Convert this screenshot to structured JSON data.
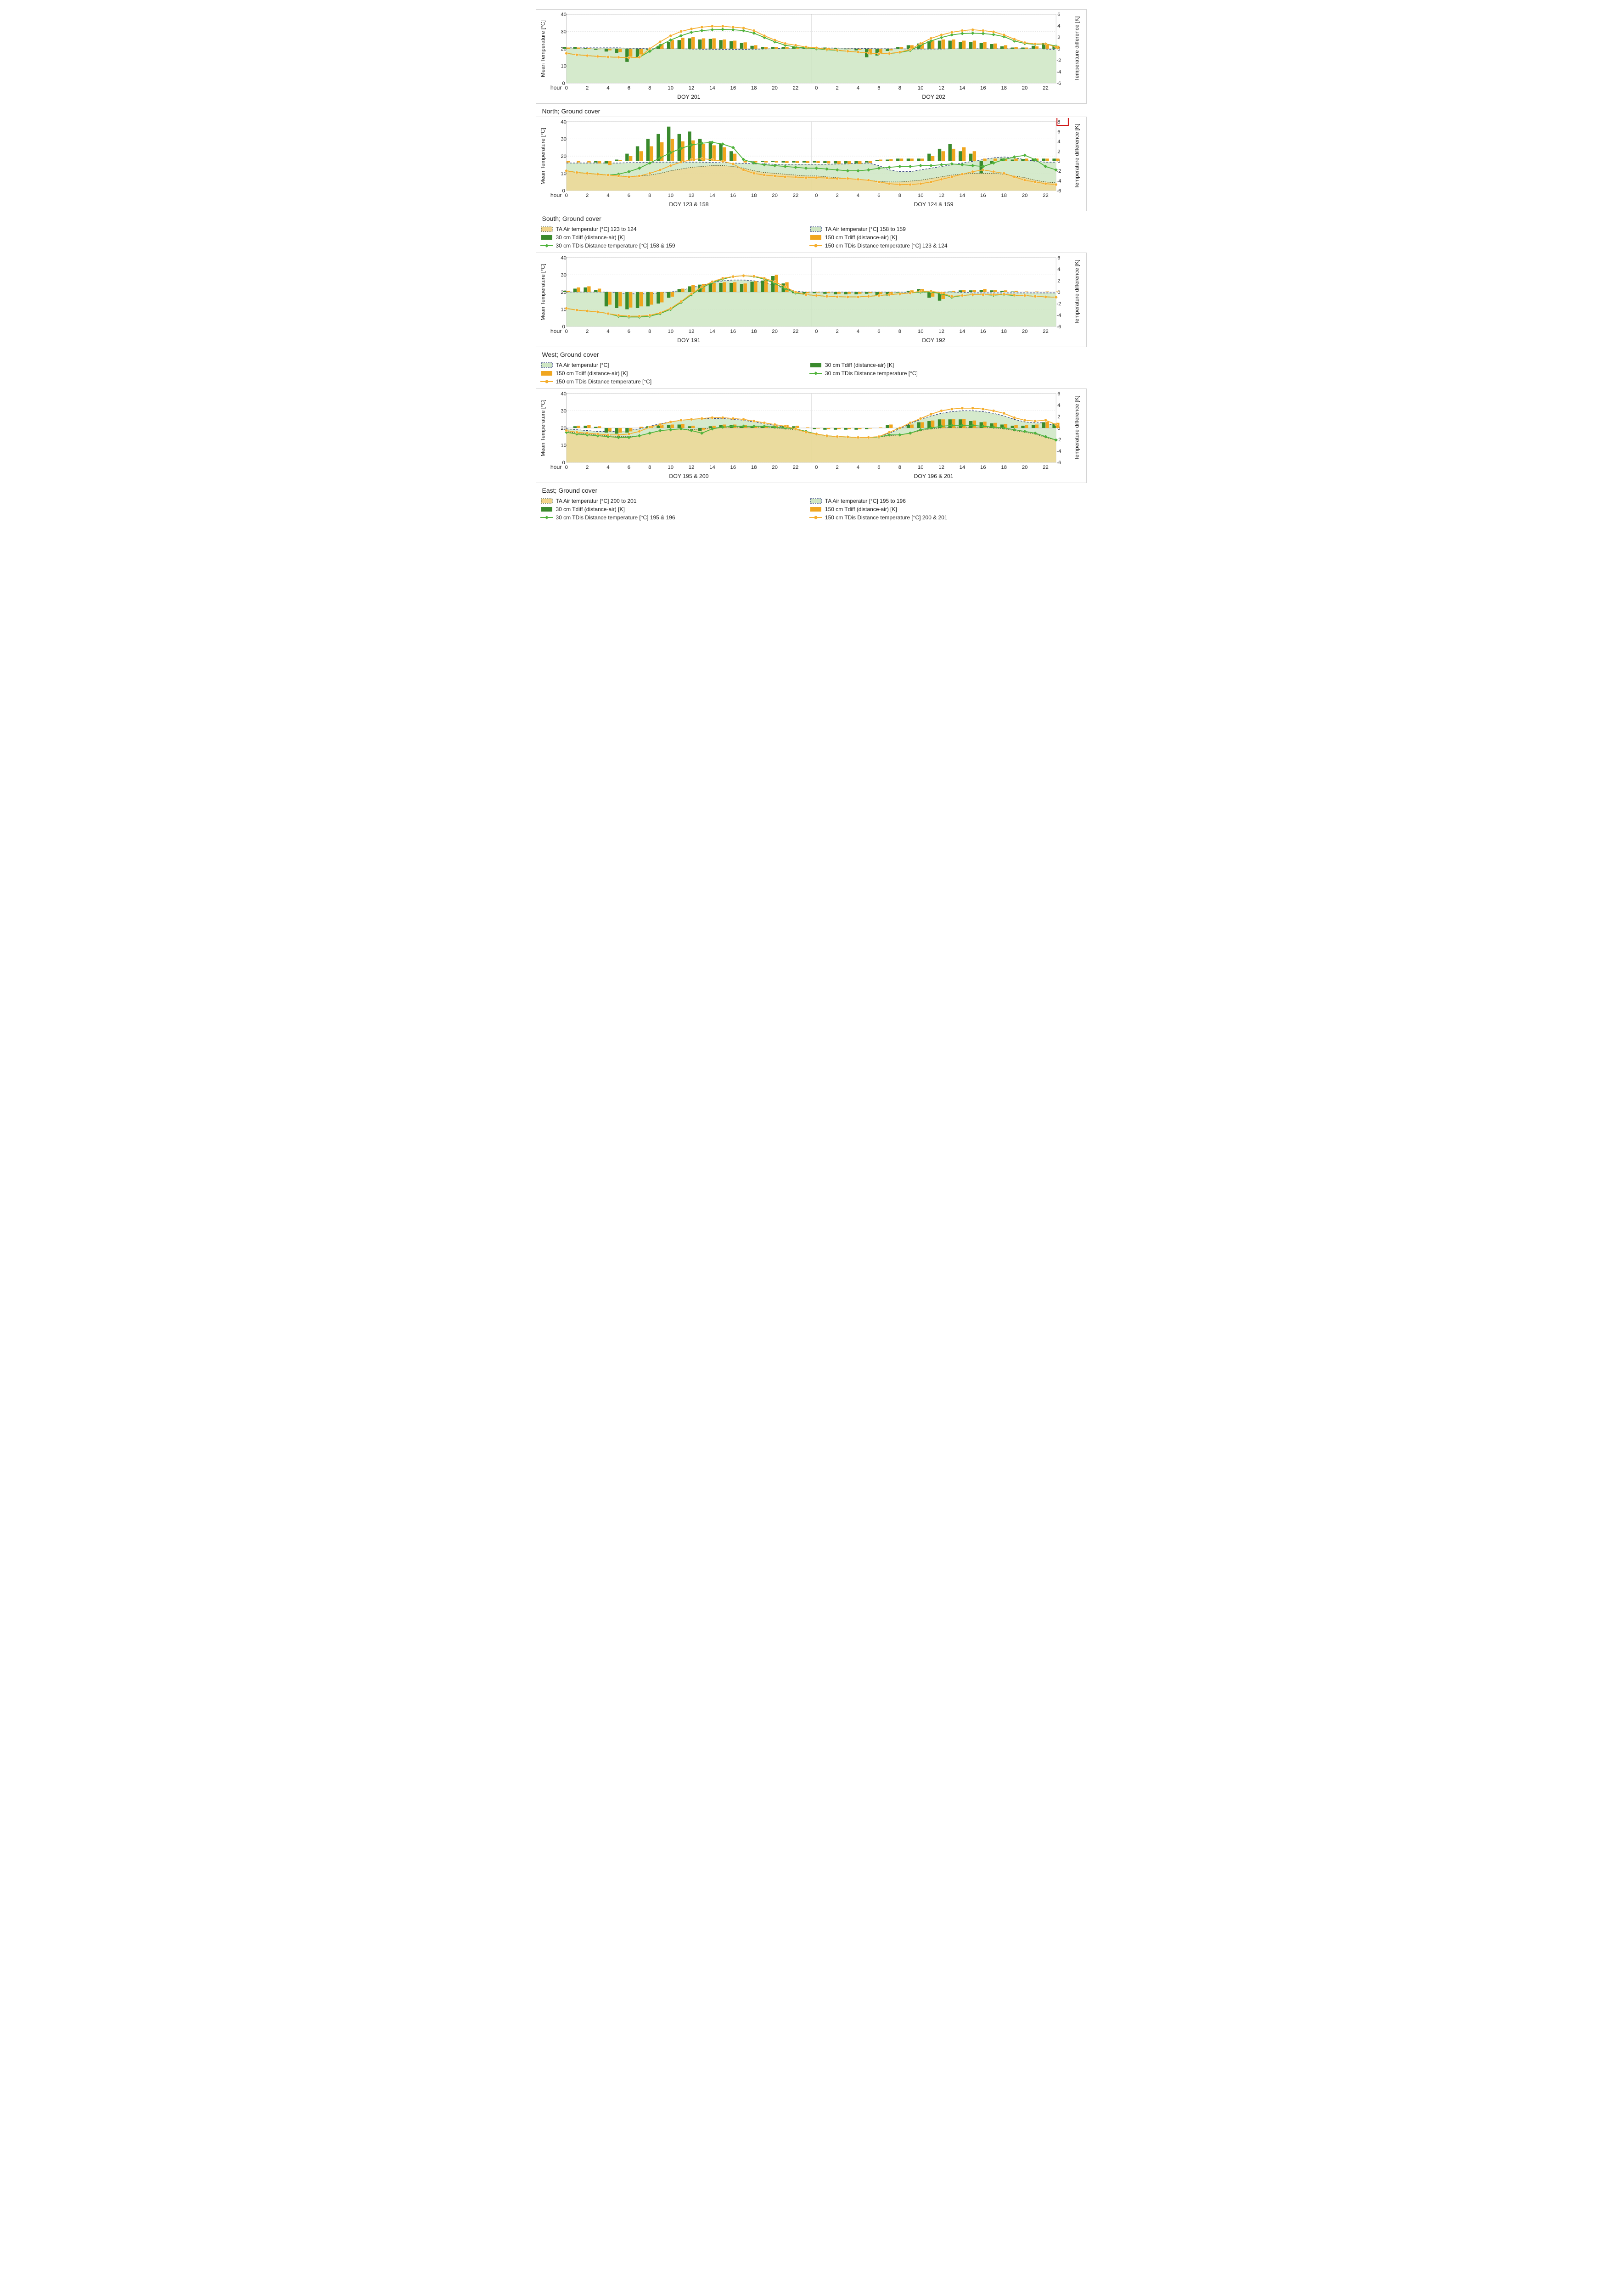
{
  "global": {
    "xAxisLabel": "hour",
    "yLeftLabel": "Mean Temperature [°C]",
    "yRightLabel": "Temperature difference [K]",
    "yLeftTicks": [
      0,
      10,
      20,
      30,
      40
    ],
    "yLeftLim": [
      0,
      40
    ],
    "yRightTicks": [
      -6,
      -4,
      -2,
      0,
      2,
      4,
      6
    ],
    "yRightLim": [
      -6,
      6
    ],
    "hourTicks": [
      0,
      2,
      4,
      6,
      8,
      10,
      12,
      14,
      16,
      18,
      20,
      22
    ],
    "colors": {
      "green": "#3a8a2d",
      "greenFill": "#cee6c3",
      "greenLine": "#50b33c",
      "orange": "#f0a61f",
      "orangeFill": "#f2d48a",
      "orangeLine": "#f5ae2e",
      "dashNavy": "#2b3a78",
      "dashDark": "#4a5428",
      "grid": "#cfcfcf",
      "border": "#a6a6a6",
      "text": "#222222",
      "redBox": "#d01818"
    },
    "fontSize": {
      "tick": 11,
      "axisLabel": 12,
      "title": 14,
      "legend": 12
    }
  },
  "panels": [
    {
      "id": "north",
      "title": "North; Ground cover",
      "subLabels": [
        "DOY 201",
        "DOY 202"
      ],
      "legend": null,
      "barsGreen": [
        0.3,
        0.3,
        0.1,
        -0.2,
        -0.5,
        -0.8,
        -2.3,
        -1.5,
        -0.2,
        0.5,
        1.2,
        1.5,
        1.8,
        1.6,
        1.7,
        1.5,
        1.3,
        1.0,
        0.5,
        0.3,
        0.3,
        0.3,
        0.3,
        0.3,
        0.2,
        0.2,
        0.1,
        -0.1,
        -0.3,
        -1.5,
        -1.2,
        -0.4,
        0.3,
        0.6,
        0.9,
        1.3,
        1.4,
        1.4,
        1.2,
        1.2,
        1.0,
        0.8,
        0.4,
        0.2,
        0.2,
        0.5,
        1.0,
        0.6
      ],
      "barsOrange": [
        0.2,
        0.2,
        0.1,
        -0.1,
        -0.3,
        -0.6,
        -1.4,
        -1.0,
        0.0,
        0.8,
        1.5,
        1.9,
        2.0,
        1.8,
        1.8,
        1.6,
        1.4,
        1.1,
        0.6,
        0.3,
        0.3,
        0.3,
        0.3,
        0.3,
        0.1,
        0.1,
        0.0,
        -0.1,
        -0.2,
        -1.0,
        -0.8,
        -0.3,
        0.3,
        0.6,
        1.0,
        1.4,
        1.6,
        1.6,
        1.4,
        1.4,
        1.2,
        0.9,
        0.6,
        0.3,
        0.2,
        0.4,
        0.8,
        0.5
      ],
      "lineGreen": [
        17.3,
        16.5,
        16.0,
        15.5,
        15.2,
        15.0,
        14.8,
        15.0,
        18.5,
        22.0,
        25.0,
        27.5,
        29.5,
        30.5,
        31.0,
        31.2,
        31.0,
        30.5,
        29.0,
        26.5,
        24.0,
        22.0,
        21.0,
        20.5,
        20.0,
        19.4,
        19.0,
        18.5,
        18.0,
        17.5,
        17.0,
        17.2,
        17.8,
        19.0,
        22.0,
        24.5,
        26.5,
        28.0,
        28.8,
        29.0,
        28.8,
        28.2,
        27.0,
        24.5,
        23.0,
        22.5,
        22.8,
        21.5
      ],
      "lineOrange": [
        17.3,
        16.5,
        16.0,
        15.5,
        15.2,
        15.0,
        14.8,
        15.0,
        20.0,
        24.0,
        27.5,
        30.0,
        31.5,
        32.5,
        33.0,
        33.0,
        32.5,
        32.0,
        30.5,
        27.5,
        25.0,
        23.0,
        22.0,
        21.0,
        20.5,
        19.6,
        19.2,
        18.5,
        18.0,
        17.5,
        17.0,
        17.2,
        18.0,
        19.5,
        23.0,
        26.0,
        28.0,
        29.5,
        30.5,
        31.0,
        30.5,
        29.8,
        28.0,
        25.5,
        23.5,
        22.8,
        22.8,
        21.0
      ],
      "areaDash": [
        20.5,
        20.5,
        20.5,
        20.5,
        20.5,
        20.5,
        20.3,
        20.2,
        20.0,
        20.0,
        19.9,
        19.9,
        19.8,
        19.7,
        19.7,
        19.6,
        19.6,
        19.6,
        19.7,
        19.8,
        20.0,
        20.3,
        20.4,
        20.4,
        20.4,
        20.4,
        20.4,
        20.3,
        20.2,
        20.1,
        20.0,
        20.0,
        19.9,
        19.8,
        19.8,
        19.8,
        19.8,
        19.9,
        19.9,
        20.0,
        20.0,
        20.0,
        20.0,
        20.0,
        20.0,
        20.0,
        19.8,
        19.5
      ],
      "showRedBox": false
    },
    {
      "id": "south",
      "title": "South; Ground cover",
      "subLabels": [
        "DOY 123 & 158",
        "DOY 124 & 159"
      ],
      "yRightTicks": [
        -6,
        -4,
        -2,
        0,
        2,
        4,
        6,
        8
      ],
      "yRightLim": [
        -6,
        8
      ],
      "legend": [
        {
          "type": "areaDashDark",
          "label": "TA Air temperatur [°C] 123 to 124"
        },
        {
          "type": "areaDashGreen",
          "label": "TA Air temperatur [°C] 158 to 159"
        },
        {
          "type": "barGreen",
          "label": "30 cm Tdiff (distance-air) [K]"
        },
        {
          "type": "barOrange",
          "label": "150 cm Tdiff (distance-air) [K]"
        },
        {
          "type": "lineGreen",
          "label": "30 cm TDis Distance temperature [°C] 158 & 159"
        },
        {
          "type": "lineOrange",
          "label": "150 cm TDis Distance temperature [°C] 123 & 124"
        }
      ],
      "barsGreen": [
        0.0,
        0.0,
        0.0,
        -0.3,
        -0.5,
        0.3,
        1.5,
        3.0,
        4.5,
        5.5,
        7.0,
        5.5,
        6.0,
        4.5,
        4.0,
        3.5,
        2.0,
        0.0,
        -0.1,
        -0.2,
        -0.2,
        -0.3,
        -0.3,
        -0.3,
        -0.3,
        -0.4,
        -0.5,
        -0.5,
        -0.5,
        -0.3,
        0.2,
        0.3,
        0.5,
        0.5,
        0.5,
        1.5,
        2.5,
        3.5,
        2.0,
        1.5,
        -2.5,
        -0.5,
        0.5,
        0.3,
        0.4,
        0.4,
        0.5,
        0.5
      ],
      "barsOrange": [
        -0.3,
        -0.3,
        -0.3,
        -0.5,
        -0.8,
        0.2,
        1.0,
        2.0,
        3.0,
        3.8,
        4.5,
        4.0,
        4.2,
        3.5,
        3.2,
        2.8,
        1.5,
        -0.3,
        -0.3,
        -0.3,
        -0.3,
        -0.4,
        -0.4,
        -0.4,
        -0.4,
        -0.5,
        -0.6,
        -0.6,
        -0.6,
        -0.4,
        0.3,
        0.4,
        0.5,
        0.5,
        0.5,
        1.0,
        2.0,
        2.5,
        2.8,
        2.0,
        0.5,
        0.5,
        0.5,
        0.5,
        0.5,
        0.5,
        0.5,
        0.5
      ],
      "lineGreen": [
        11.5,
        10.5,
        10.0,
        9.5,
        9.0,
        9.5,
        11.0,
        13.0,
        16.0,
        19.0,
        22.0,
        24.5,
        26.5,
        27.5,
        28.0,
        27.0,
        25.0,
        18.0,
        16.0,
        15.0,
        14.5,
        14.0,
        13.5,
        13.0,
        13.0,
        12.5,
        12.0,
        11.5,
        11.5,
        12.0,
        13.0,
        13.5,
        14.0,
        14.0,
        14.5,
        14.5,
        15.0,
        15.5,
        15.0,
        14.5,
        14.0,
        16.0,
        18.0,
        19.5,
        20.5,
        18.0,
        14.0,
        12.0
      ],
      "lineOrange": [
        11.5,
        10.5,
        10.0,
        9.5,
        9.0,
        8.5,
        8.0,
        8.5,
        10.0,
        12.0,
        14.5,
        16.5,
        18.0,
        18.5,
        18.0,
        17.0,
        15.5,
        12.0,
        10.0,
        9.0,
        8.5,
        8.0,
        7.8,
        7.5,
        7.5,
        7.3,
        7.0,
        7.0,
        6.5,
        6.0,
        5.0,
        4.0,
        3.5,
        3.5,
        4.0,
        5.0,
        6.5,
        8.0,
        9.5,
        11.0,
        12.0,
        11.0,
        10.0,
        8.0,
        6.0,
        5.0,
        4.0,
        3.5
      ],
      "areaDash": [
        16.0,
        16.0,
        16.0,
        16.0,
        16.0,
        16.0,
        16.2,
        16.3,
        16.4,
        16.5,
        16.5,
        16.5,
        16.5,
        16.5,
        16.3,
        16.2,
        16.0,
        15.8,
        15.5,
        15.5,
        15.3,
        15.3,
        15.3,
        15.3,
        15.3,
        15.3,
        15.4,
        15.5,
        15.8,
        16.0,
        14.5,
        12.0,
        11.0,
        11.0,
        12.0,
        13.0,
        14.0,
        15.0,
        16.0,
        17.0,
        18.0,
        19.0,
        19.5,
        19.0,
        18.0,
        17.0,
        16.5,
        16.5
      ],
      "areaDash2": [
        11.5,
        10.5,
        10.0,
        9.5,
        9.0,
        8.5,
        8.3,
        8.5,
        9.0,
        10.0,
        11.5,
        12.5,
        13.5,
        14.0,
        14.5,
        14.5,
        14.0,
        13.0,
        11.5,
        10.5,
        10.0,
        9.5,
        9.0,
        8.5,
        8.5,
        8.0,
        7.5,
        7.0,
        6.5,
        6.0,
        5.3,
        5.0,
        5.0,
        5.5,
        6.0,
        7.0,
        8.0,
        9.0,
        9.5,
        10.0,
        10.0,
        10.0,
        9.5,
        8.5,
        7.5,
        6.0,
        5.0,
        4.5
      ],
      "showRedBox": true
    },
    {
      "id": "west",
      "title": "West; Ground cover",
      "subLabels": [
        "DOY 191",
        "DOY 192"
      ],
      "legend": [
        {
          "type": "areaDashGreen",
          "label": "TA Air temperatur [°C]"
        },
        {
          "type": "barGreen",
          "label": "30 cm Tdiff (distance-air) [K]"
        },
        {
          "type": "barOrange",
          "label": "150 cm Tdiff (distance-air) [K]"
        },
        {
          "type": "lineGreen",
          "label": "30 cm TDis Distance temperature [°C]"
        },
        {
          "type": "lineOrange",
          "label": "150 cm TDis Distance temperature [°C]"
        }
      ],
      "barsGreen": [
        0.2,
        0.6,
        0.8,
        0.4,
        -2.5,
        -2.8,
        -3.0,
        -2.8,
        -2.5,
        -2.0,
        -1.0,
        0.5,
        1.0,
        1.3,
        1.5,
        1.6,
        1.6,
        1.4,
        1.8,
        2.0,
        2.8,
        1.5,
        -0.2,
        -0.3,
        -0.2,
        -0.3,
        -0.4,
        -0.4,
        -0.4,
        -0.3,
        -0.5,
        -0.6,
        -0.1,
        0.2,
        0.5,
        -1.0,
        -1.5,
        0.1,
        0.3,
        0.3,
        0.4,
        0.3,
        0.2,
        0.1,
        0.0,
        0.0,
        0.0,
        0.0
      ],
      "barsOrange": [
        0.2,
        0.8,
        1.0,
        0.6,
        -2.2,
        -2.5,
        -2.7,
        -2.5,
        -2.2,
        -1.8,
        -0.8,
        0.6,
        1.2,
        1.4,
        1.6,
        1.7,
        1.7,
        1.5,
        1.9,
        2.3,
        3.0,
        1.7,
        -0.1,
        -0.2,
        -0.1,
        -0.2,
        -0.3,
        -0.3,
        -0.3,
        -0.2,
        -0.4,
        -0.5,
        0.0,
        0.3,
        0.5,
        -0.8,
        -1.2,
        0.2,
        0.4,
        0.4,
        0.5,
        0.4,
        0.3,
        0.2,
        0.1,
        0.1,
        0.1,
        0.1
      ],
      "lineGreen": [
        10.5,
        9.5,
        9.0,
        8.5,
        7.5,
        6.0,
        5.5,
        5.5,
        6.0,
        7.5,
        10.0,
        14.0,
        18.5,
        22.5,
        25.5,
        27.5,
        29.0,
        29.5,
        29.0,
        27.5,
        25.0,
        22.0,
        19.5,
        18.5,
        18.0,
        17.5,
        17.3,
        17.2,
        17.2,
        17.5,
        18.0,
        18.5,
        19.0,
        19.5,
        20.0,
        20.0,
        19.0,
        17.0,
        18.0,
        18.5,
        18.5,
        18.2,
        18.5,
        18.0,
        18.0,
        17.5,
        17.2,
        17.0
      ],
      "lineOrange": [
        10.5,
        9.5,
        9.0,
        8.5,
        7.5,
        6.5,
        6.0,
        6.0,
        6.5,
        8.0,
        10.5,
        14.5,
        19.0,
        23.0,
        26.0,
        28.0,
        29.0,
        29.5,
        29.2,
        28.0,
        26.0,
        23.0,
        20.0,
        18.5,
        18.0,
        17.5,
        17.3,
        17.2,
        17.2,
        17.5,
        18.0,
        18.5,
        19.0,
        19.5,
        20.5,
        20.5,
        19.5,
        17.5,
        18.0,
        18.5,
        18.5,
        18.5,
        18.8,
        18.2,
        18.0,
        17.5,
        17.2,
        17.0
      ],
      "areaDash": [
        20.0,
        20.0,
        20.0,
        20.0,
        20.0,
        19.5,
        19.0,
        19.0,
        19.0,
        19.5,
        20.0,
        21.0,
        22.5,
        24.0,
        25.5,
        26.5,
        27.0,
        27.0,
        26.5,
        25.5,
        24.0,
        22.0,
        20.5,
        20.0,
        20.0,
        20.0,
        20.0,
        20.0,
        20.0,
        20.0,
        20.0,
        20.0,
        20.0,
        19.8,
        19.8,
        20.0,
        20.0,
        20.0,
        19.8,
        19.5,
        19.5,
        19.5,
        19.5,
        19.5,
        19.5,
        19.5,
        19.5,
        19.5
      ],
      "showRedBox": false
    },
    {
      "id": "east",
      "title": "East; Ground cover",
      "subLabels": [
        "DOY 195 & 200",
        "DOY 196 & 201"
      ],
      "legend": [
        {
          "type": "areaDashDark",
          "label": "TA Air temperatur [°C] 200 to 201"
        },
        {
          "type": "areaDashGreen",
          "label": "TA Air temperatur [°C] 195 to 196"
        },
        {
          "type": "barGreen",
          "label": "30 cm Tdiff (distance-air) [K]"
        },
        {
          "type": "barOrange",
          "label": "150 cm Tdiff (distance-air) [K]"
        },
        {
          "type": "lineGreen",
          "label": "30 cm TDis Distance temperature [°C] 195 & 196"
        },
        {
          "type": "lineOrange",
          "label": "150 cm TDis Distance temperature [°C] 200 & 201"
        }
      ],
      "barsGreen": [
        0.0,
        0.3,
        0.4,
        0.2,
        -0.8,
        -1.0,
        -0.8,
        0.0,
        0.3,
        0.5,
        0.5,
        0.6,
        0.3,
        -0.5,
        0.3,
        0.5,
        0.5,
        0.4,
        0.3,
        0.3,
        0.3,
        0.4,
        0.3,
        0.0,
        -0.2,
        -0.3,
        -0.3,
        -0.3,
        -0.3,
        -0.2,
        0.0,
        0.5,
        -0.1,
        0.5,
        1.0,
        1.2,
        1.5,
        1.5,
        1.5,
        1.2,
        1.0,
        0.8,
        0.6,
        0.4,
        0.4,
        0.5,
        1.0,
        0.8
      ],
      "barsOrange": [
        0.0,
        0.4,
        0.5,
        0.3,
        -0.6,
        -0.8,
        -0.6,
        0.2,
        0.4,
        0.5,
        0.6,
        0.7,
        0.4,
        -0.3,
        0.4,
        0.6,
        0.6,
        0.5,
        0.4,
        0.4,
        0.4,
        0.5,
        0.4,
        0.1,
        -0.1,
        -0.2,
        -0.2,
        -0.2,
        -0.2,
        -0.1,
        0.1,
        0.6,
        0.0,
        0.6,
        1.0,
        1.3,
        1.5,
        1.6,
        1.6,
        1.3,
        1.1,
        0.9,
        0.7,
        0.5,
        0.5,
        0.6,
        1.1,
        0.9
      ],
      "lineGreen": [
        17.5,
        16.5,
        16.0,
        15.5,
        15.0,
        14.5,
        14.5,
        15.5,
        17.0,
        18.5,
        19.0,
        19.5,
        18.5,
        17.0,
        19.5,
        20.5,
        21.0,
        21.0,
        21.0,
        21.0,
        20.5,
        20.0,
        19.5,
        18.0,
        16.5,
        15.5,
        15.0,
        14.8,
        14.5,
        14.5,
        14.8,
        16.0,
        16.0,
        17.0,
        19.0,
        20.0,
        21.0,
        21.5,
        21.5,
        21.5,
        21.0,
        20.5,
        20.0,
        19.0,
        18.0,
        17.0,
        15.0,
        13.0
      ],
      "lineOrange": [
        18.5,
        17.5,
        17.0,
        16.5,
        16.0,
        16.0,
        16.5,
        18.0,
        20.5,
        22.0,
        23.5,
        24.5,
        25.0,
        25.5,
        26.0,
        26.0,
        25.5,
        25.0,
        24.0,
        23.0,
        22.0,
        21.0,
        19.5,
        17.5,
        16.5,
        15.5,
        15.0,
        14.8,
        14.5,
        14.5,
        15.0,
        17.5,
        20.0,
        23.0,
        25.5,
        28.0,
        30.0,
        31.0,
        31.5,
        31.5,
        31.0,
        30.0,
        28.5,
        26.0,
        24.5,
        24.0,
        24.5,
        22.0
      ],
      "areaDash": [
        19.5,
        19.0,
        18.5,
        18.0,
        18.0,
        18.0,
        18.5,
        19.5,
        21.0,
        22.5,
        23.5,
        24.5,
        25.0,
        25.5,
        25.5,
        25.5,
        25.0,
        24.5,
        23.5,
        22.5,
        21.5,
        20.5,
        19.5,
        17.5,
        16.5,
        15.5,
        15.0,
        14.8,
        14.5,
        14.5,
        15.0,
        17.0,
        19.5,
        22.5,
        25.0,
        27.0,
        28.5,
        29.5,
        30.0,
        30.0,
        29.5,
        28.5,
        27.0,
        25.0,
        23.5,
        23.0,
        23.0,
        21.0
      ],
      "areaDash2": [
        18.0,
        17.0,
        16.5,
        16.0,
        15.5,
        15.0,
        15.0,
        15.5,
        17.0,
        18.5,
        19.0,
        19.5,
        19.0,
        19.5,
        20.0,
        20.5,
        20.5,
        20.5,
        20.5,
        20.5,
        20.0,
        19.5,
        19.0,
        18.0,
        16.5,
        15.5,
        15.0,
        14.8,
        14.5,
        14.5,
        14.8,
        15.5,
        16.0,
        17.0,
        18.5,
        19.5,
        20.0,
        20.5,
        20.5,
        20.5,
        20.5,
        20.0,
        19.5,
        18.5,
        17.5,
        16.5,
        14.5,
        13.0
      ],
      "showRedBox": false
    }
  ]
}
